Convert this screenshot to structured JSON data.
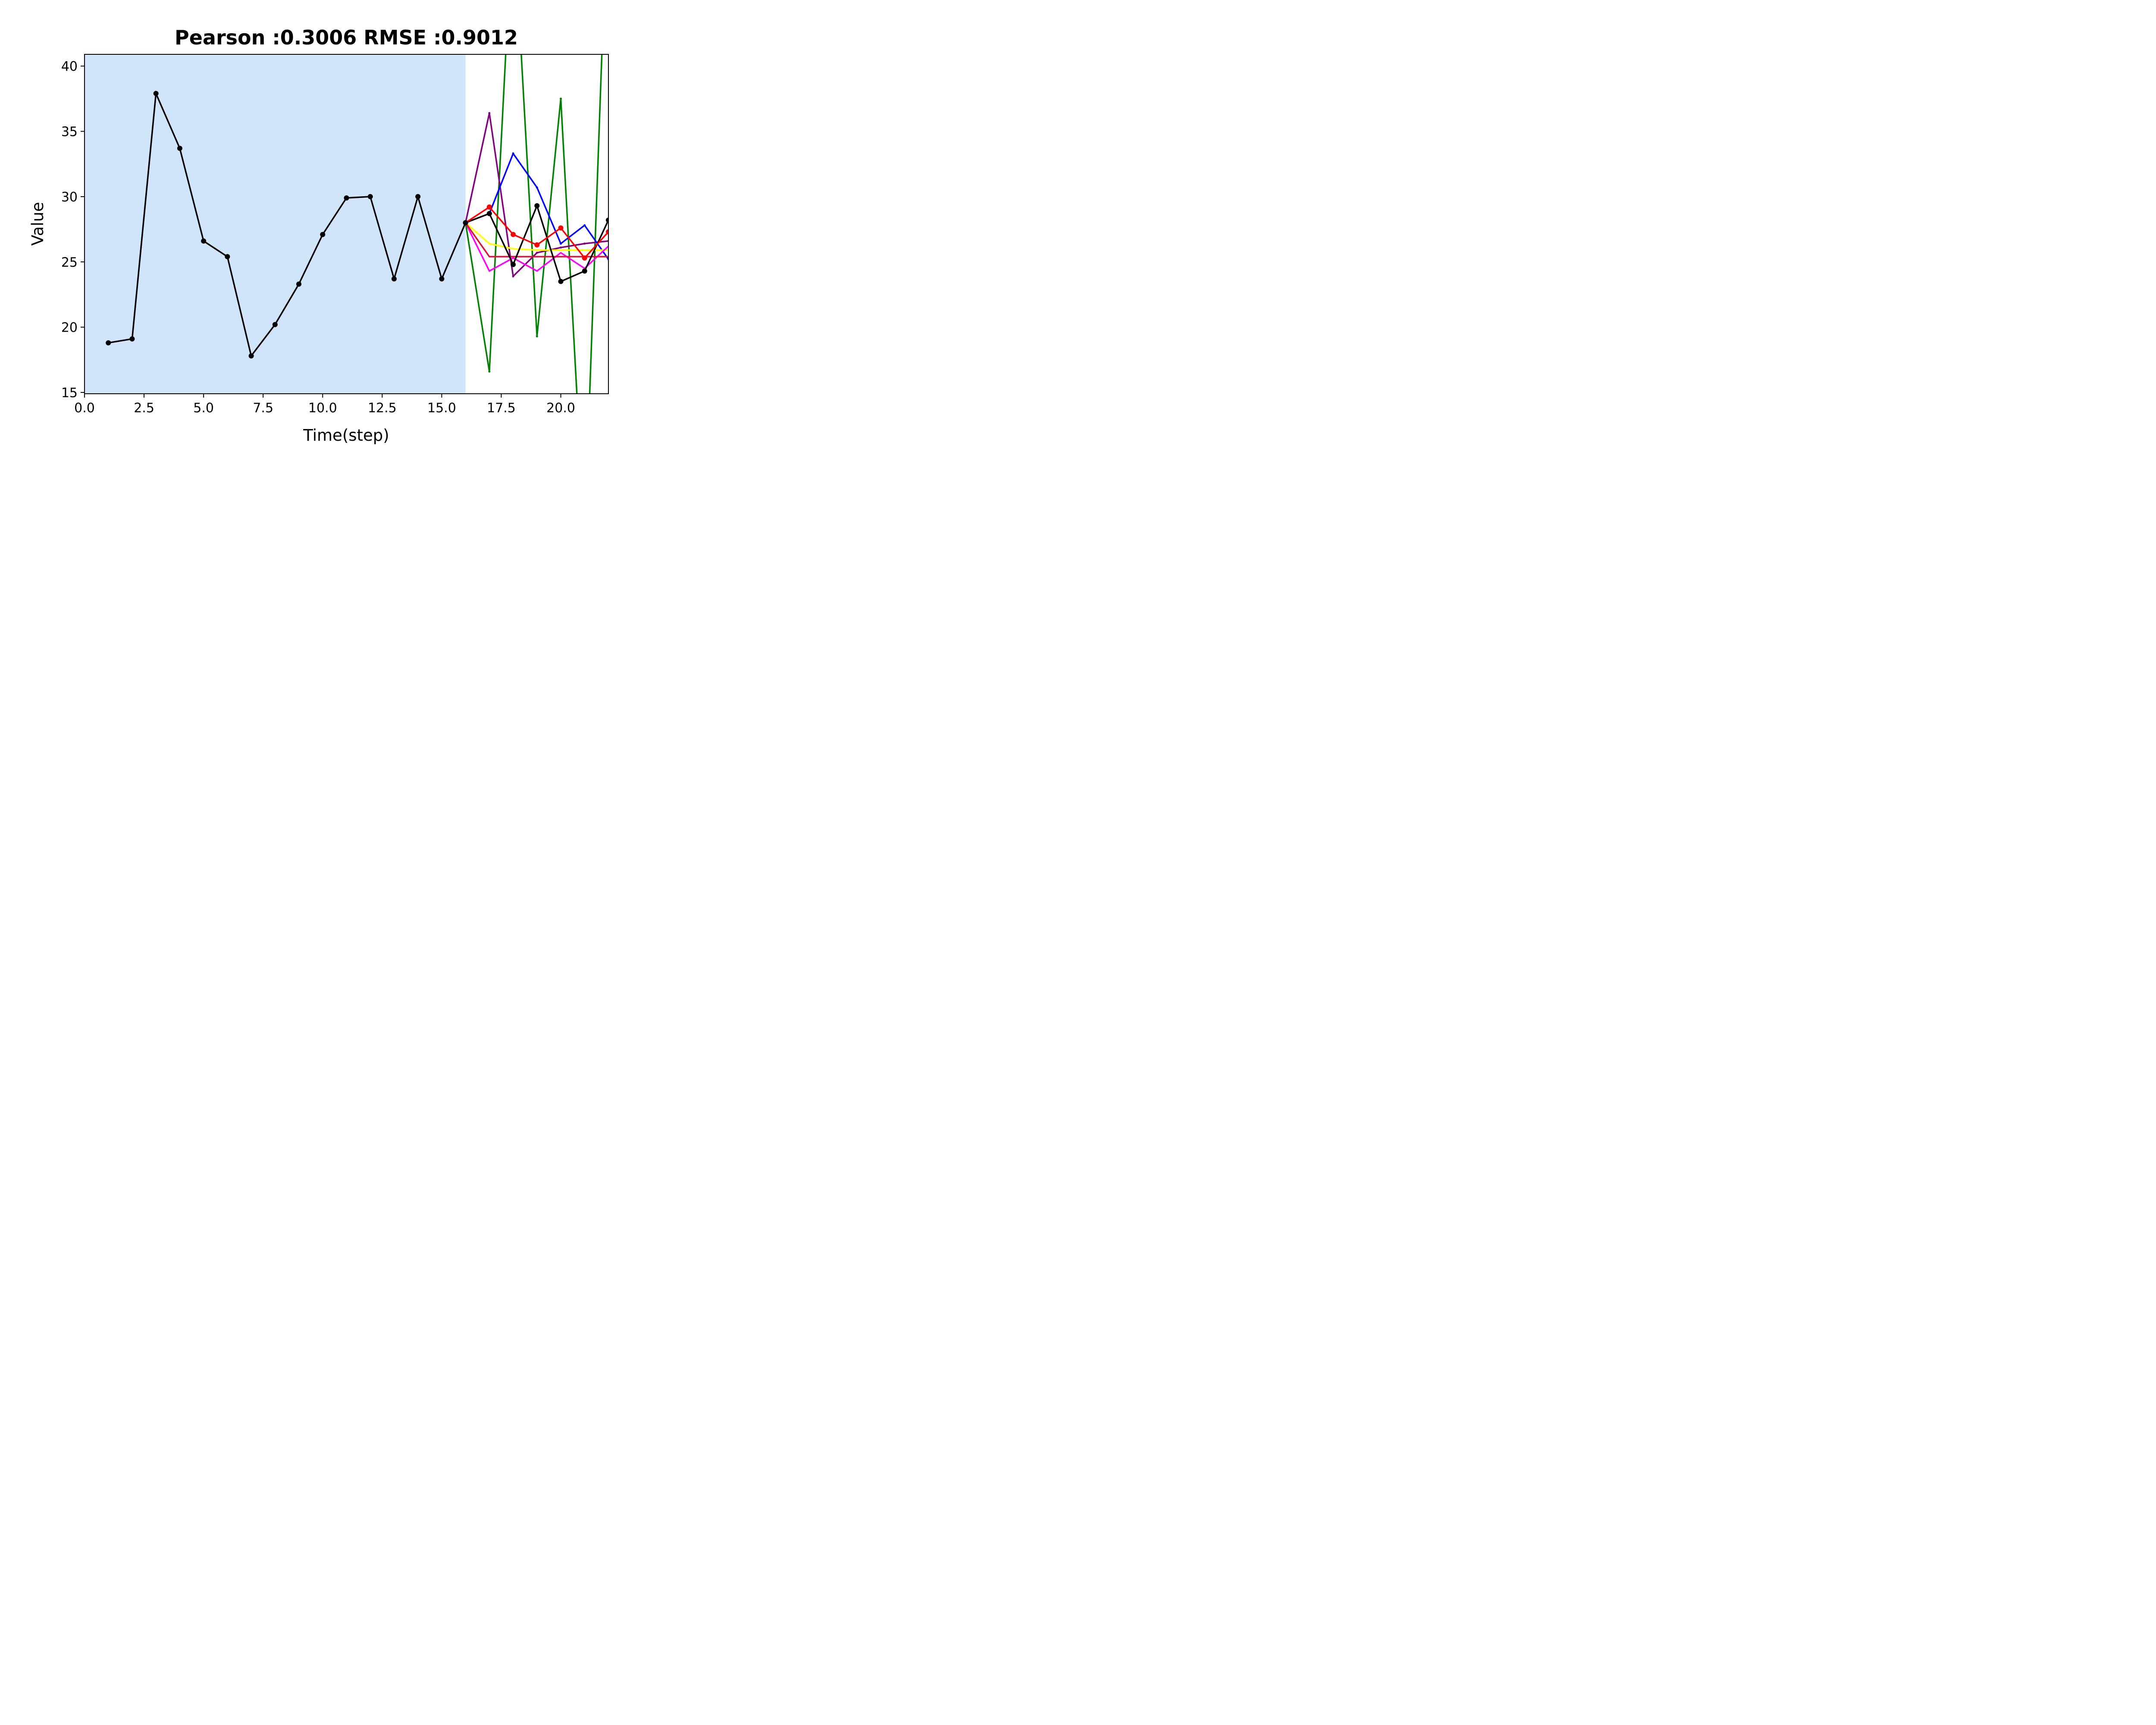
{
  "chart_data": {
    "type": "line",
    "title": "Pearson :0.3006  RMSE :0.9012",
    "xlabel": "Time(step)",
    "ylabel": "Value",
    "xlim": [
      0,
      22
    ],
    "ylim": [
      14.9,
      40.9
    ],
    "xticks": [
      "0.0",
      "2.5",
      "5.0",
      "7.5",
      "10.0",
      "12.5",
      "15.0",
      "17.5",
      "20.0"
    ],
    "yticks": [
      "15",
      "20",
      "25",
      "30",
      "35",
      "40"
    ],
    "grid": false,
    "shaded_region": {
      "x_from": 0,
      "x_to": 16,
      "color": "#d0e4fa"
    },
    "series": [
      {
        "color": "#008000",
        "markers": true,
        "x": [
          16,
          17,
          18,
          19,
          20,
          21,
          22
        ],
        "y": [
          28.0,
          16.6,
          52.0,
          19.3,
          37.5,
          4.0,
          55.0
        ]
      },
      {
        "color": "#800080",
        "markers": true,
        "x": [
          16,
          17,
          18,
          19,
          20,
          21,
          22
        ],
        "y": [
          28.0,
          36.4,
          23.9,
          25.7,
          26.1,
          26.4,
          26.6
        ]
      },
      {
        "color": "#0000ff",
        "markers": true,
        "x": [
          16,
          17,
          18,
          19,
          20,
          21,
          22
        ],
        "y": [
          28.0,
          28.7,
          33.3,
          30.7,
          26.4,
          27.8,
          25.2
        ]
      },
      {
        "color": "#ffff00",
        "markers": false,
        "x": [
          16,
          17,
          18,
          19,
          20,
          21,
          22
        ],
        "y": [
          28.0,
          26.4,
          26.0,
          25.9,
          25.9,
          25.9,
          25.9
        ]
      },
      {
        "color": "#ff00ff",
        "markers": false,
        "x": [
          16,
          17,
          18,
          19,
          20,
          21,
          22
        ],
        "y": [
          28.0,
          24.3,
          25.3,
          24.3,
          25.7,
          24.5,
          26.2
        ]
      },
      {
        "color": "#dc143c",
        "markers": false,
        "x": [
          16,
          17,
          18,
          19,
          20,
          21,
          22
        ],
        "y": [
          28.0,
          25.4,
          25.4,
          25.4,
          25.4,
          25.4,
          25.4
        ]
      },
      {
        "color": "#000000",
        "markers": true,
        "x": [
          16,
          17,
          18,
          19,
          20,
          21,
          22
        ],
        "y": [
          28.0,
          28.7,
          24.8,
          29.3,
          23.5,
          24.3,
          28.2
        ]
      },
      {
        "color": "#ff0000",
        "markers": true,
        "x": [
          16,
          17,
          18,
          19,
          20,
          21,
          22
        ],
        "y": [
          28.0,
          29.2,
          27.1,
          26.3,
          27.6,
          25.3,
          27.3
        ]
      },
      {
        "color": "#000000",
        "markers": true,
        "x": [
          1,
          2,
          3,
          4,
          5,
          6,
          7,
          8,
          9,
          10,
          11,
          12,
          13,
          14,
          15,
          16
        ],
        "y": [
          18.8,
          19.1,
          37.9,
          33.7,
          26.6,
          25.4,
          17.8,
          20.2,
          23.3,
          27.1,
          29.9,
          30.0,
          23.7,
          30.0,
          23.7,
          28.0
        ]
      }
    ]
  }
}
